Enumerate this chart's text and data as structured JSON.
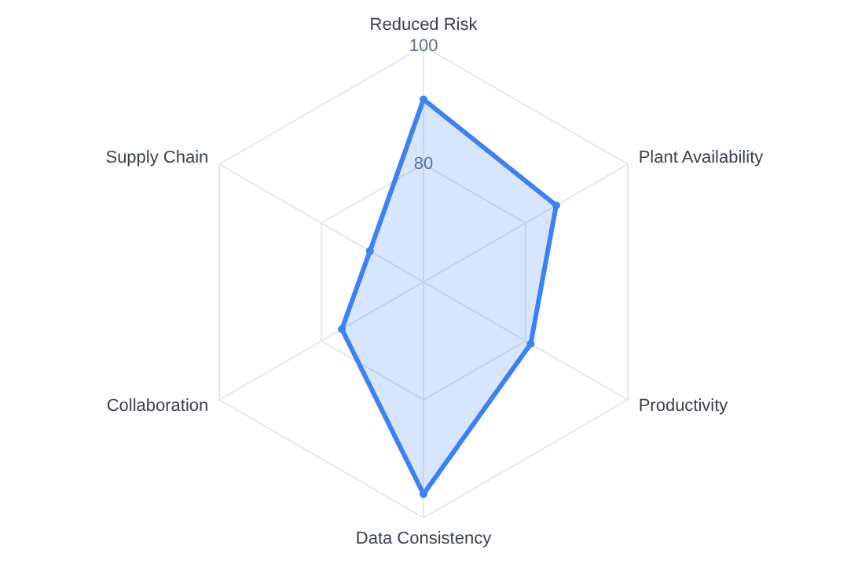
{
  "chart_data": {
    "type": "radar",
    "categories": [
      "Reduced Risk",
      "Plant Availability",
      "Productivity",
      "Data Consistency",
      "Collaboration",
      "Supply Chain"
    ],
    "series": [
      {
        "color": "#3b82f6",
        "values": [
          91,
          86,
          81,
          96,
          76,
          70.5
        ]
      }
    ],
    "ylim": [
      60,
      100
    ],
    "yticks": [
      80,
      100
    ],
    "grid": true,
    "marker": "circle"
  }
}
